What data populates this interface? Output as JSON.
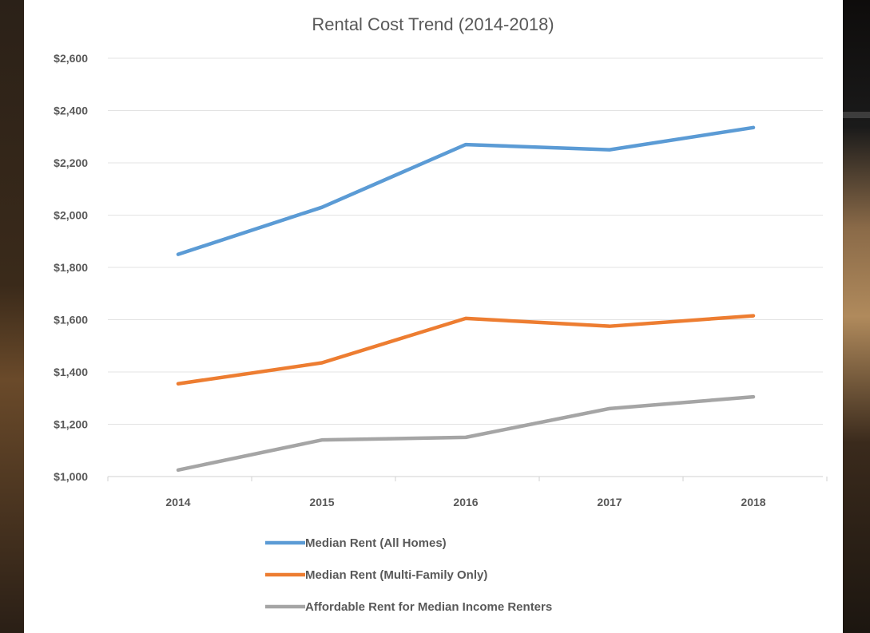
{
  "chart_data": {
    "type": "line",
    "title": "Rental Cost Trend (2014-2018)",
    "x": [
      "2014",
      "2015",
      "2016",
      "2017",
      "2018"
    ],
    "ylim": [
      1000,
      2600
    ],
    "yticks": [
      1000,
      1200,
      1400,
      1600,
      1800,
      2000,
      2200,
      2400,
      2600
    ],
    "ytick_labels": [
      "$1,000",
      "$1,200",
      "$1,400",
      "$1,600",
      "$1,800",
      "$2,000",
      "$2,200",
      "$2,400",
      "$2,600"
    ],
    "grid": true,
    "legend_position": "bottom",
    "series": [
      {
        "name": "Median Rent (All Homes)",
        "color": "#5b9bd5",
        "values": [
          1850,
          2030,
          2270,
          2250,
          2335
        ]
      },
      {
        "name": "Median Rent (Multi-Family Only)",
        "color": "#ed7d31",
        "values": [
          1355,
          1435,
          1605,
          1575,
          1615
        ]
      },
      {
        "name": "Affordable Rent for Median Income Renters",
        "color": "#a5a5a5",
        "values": [
          1025,
          1140,
          1150,
          1260,
          1305
        ]
      }
    ]
  }
}
